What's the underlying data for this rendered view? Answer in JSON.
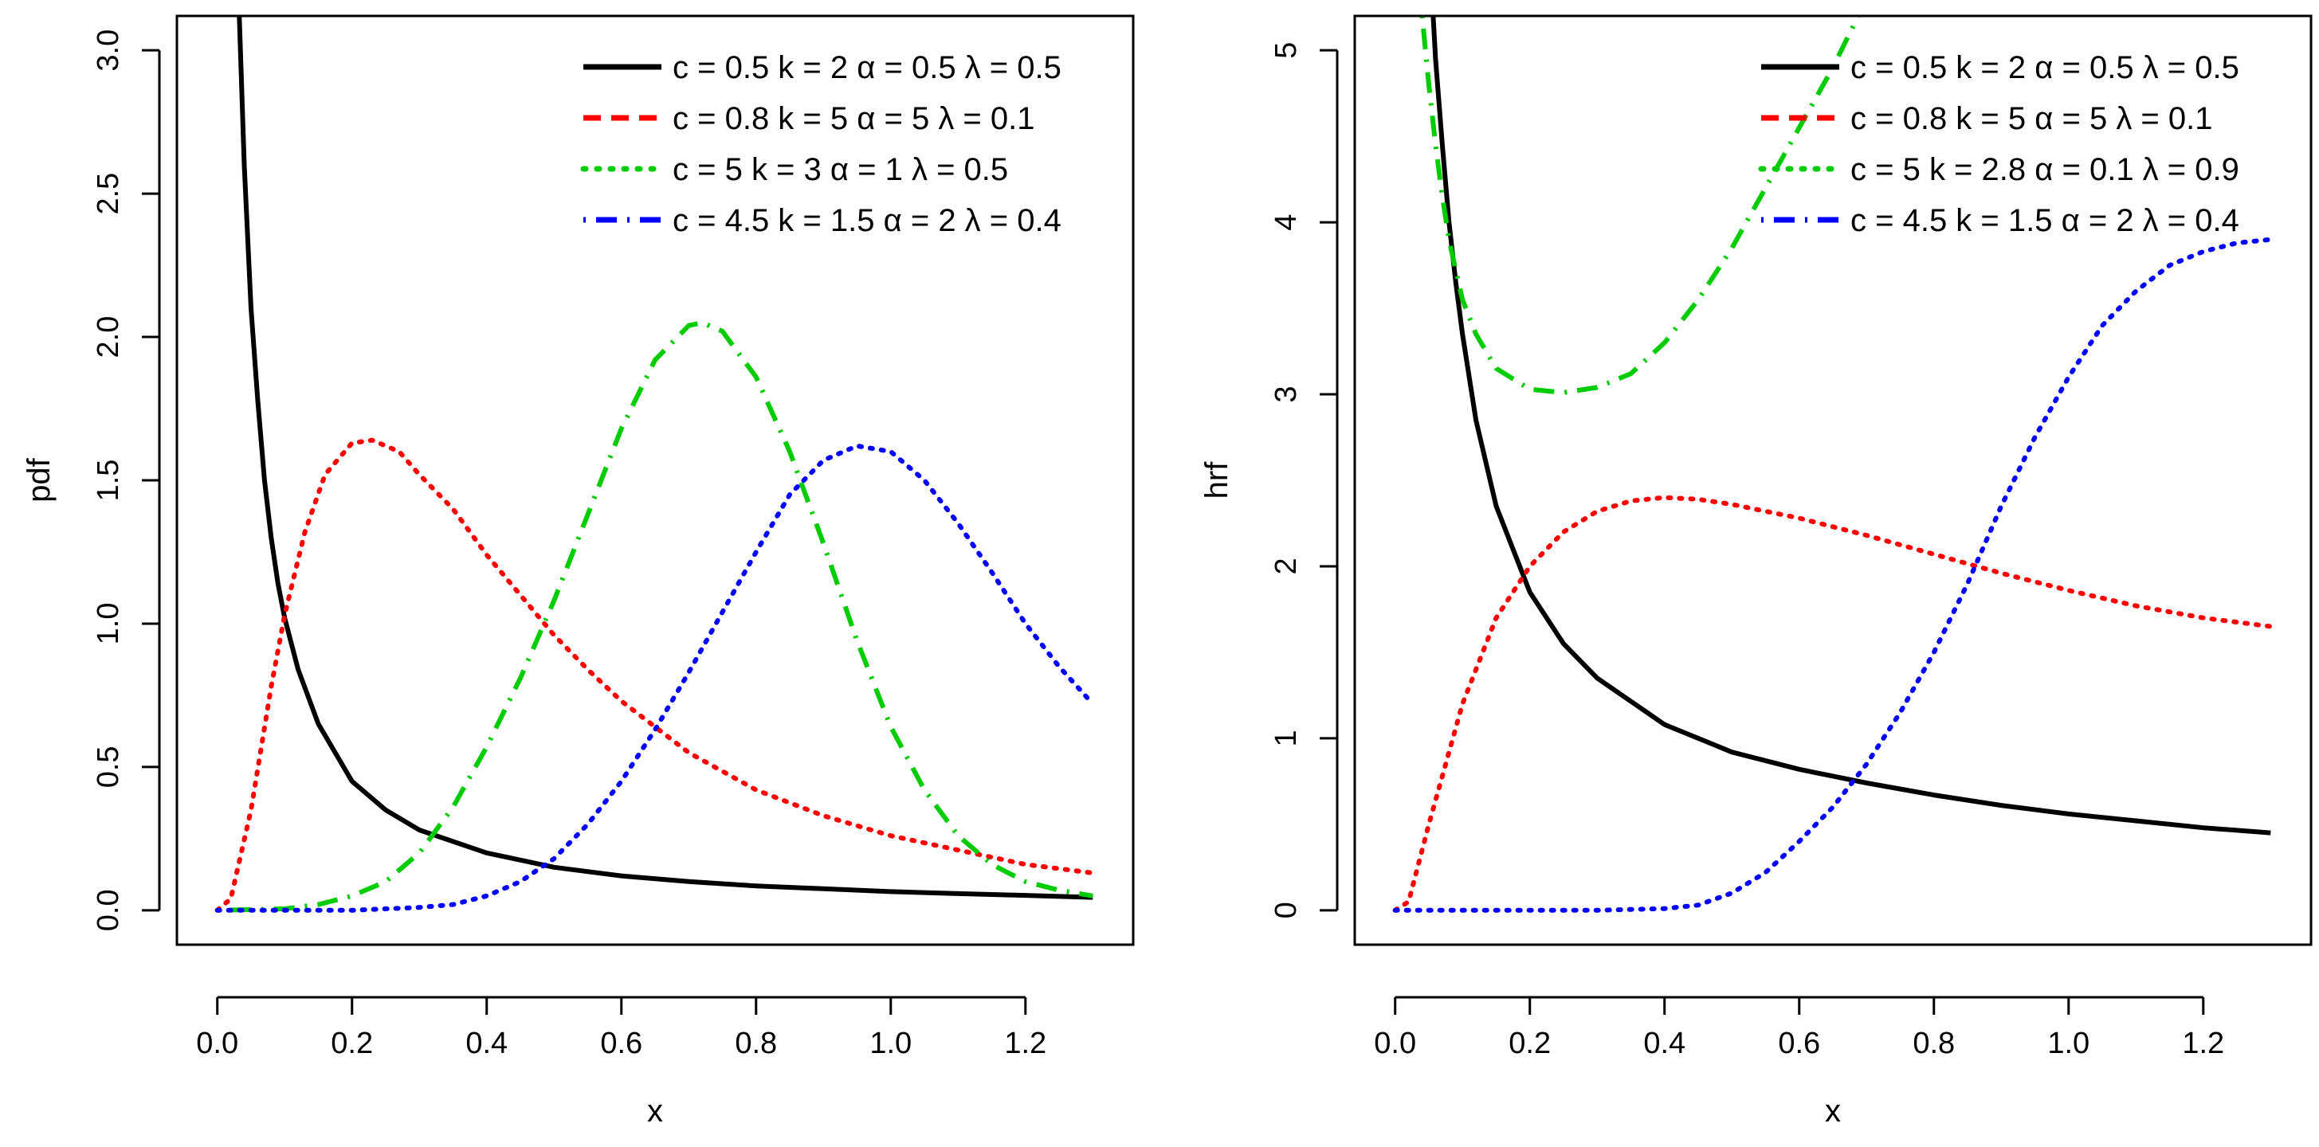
{
  "chart_data": [
    {
      "type": "line",
      "title": "",
      "xlabel": "x",
      "ylabel": "pdf",
      "xlim": [
        -0.06,
        1.36
      ],
      "ylim": [
        -0.12,
        3.12
      ],
      "xticks": [
        0.0,
        0.2,
        0.4,
        0.6,
        0.8,
        1.0,
        1.2
      ],
      "xtick_labels": [
        "0.0",
        "0.2",
        "0.4",
        "0.6",
        "0.8",
        "1.0",
        "1.2"
      ],
      "yticks": [
        0.0,
        0.5,
        1.0,
        1.5,
        2.0,
        2.5,
        3.0
      ],
      "ytick_labels": [
        "0.0",
        "0.5",
        "1.0",
        "1.5",
        "2.0",
        "2.5",
        "3.0"
      ],
      "legend_position": "top-right",
      "series": [
        {
          "name": "c = 0.5  k = 2  α = 0.5  λ = 0.5",
          "color": "#000000",
          "style": "solid",
          "legend_style": "solid",
          "x": [
            0.03,
            0.04,
            0.05,
            0.06,
            0.07,
            0.08,
            0.09,
            0.1,
            0.12,
            0.15,
            0.2,
            0.25,
            0.3,
            0.4,
            0.5,
            0.6,
            0.7,
            0.8,
            0.9,
            1.0,
            1.1,
            1.2,
            1.3
          ],
          "y": [
            3.3,
            2.6,
            2.1,
            1.78,
            1.5,
            1.3,
            1.14,
            1.02,
            0.84,
            0.65,
            0.45,
            0.35,
            0.28,
            0.2,
            0.15,
            0.12,
            0.1,
            0.085,
            0.075,
            0.065,
            0.058,
            0.052,
            0.045
          ]
        },
        {
          "name": "c = 0.8  k = 5  α = 5  λ = 0.1",
          "color": "#ff0000",
          "style": "dotted",
          "legend_style": "dashed",
          "x": [
            0.0,
            0.02,
            0.05,
            0.08,
            0.1,
            0.13,
            0.16,
            0.2,
            0.23,
            0.27,
            0.3,
            0.35,
            0.4,
            0.45,
            0.5,
            0.55,
            0.6,
            0.7,
            0.8,
            0.9,
            1.0,
            1.1,
            1.2,
            1.3
          ],
          "y": [
            0.0,
            0.04,
            0.35,
            0.78,
            1.03,
            1.32,
            1.52,
            1.63,
            1.64,
            1.6,
            1.52,
            1.4,
            1.24,
            1.1,
            0.96,
            0.84,
            0.73,
            0.55,
            0.42,
            0.33,
            0.26,
            0.21,
            0.16,
            0.13
          ]
        },
        {
          "name": "c = 5  k = 3  α = 1  λ = 0.5",
          "color": "#00cc00",
          "style": "dotdash",
          "legend_style": "dotted",
          "x": [
            0.0,
            0.1,
            0.15,
            0.2,
            0.25,
            0.3,
            0.35,
            0.4,
            0.45,
            0.5,
            0.55,
            0.6,
            0.65,
            0.7,
            0.72,
            0.75,
            0.8,
            0.85,
            0.9,
            0.95,
            1.0,
            1.05,
            1.1,
            1.15,
            1.2,
            1.25,
            1.3
          ],
          "y": [
            0.0,
            0.005,
            0.02,
            0.05,
            0.1,
            0.2,
            0.36,
            0.57,
            0.81,
            1.08,
            1.38,
            1.68,
            1.92,
            2.04,
            2.05,
            2.02,
            1.86,
            1.6,
            1.28,
            0.94,
            0.64,
            0.42,
            0.26,
            0.16,
            0.1,
            0.07,
            0.05
          ]
        },
        {
          "name": "c = 4.5  k = 1.5  α = 2  λ = 0.4",
          "color": "#0000ff",
          "style": "dotted",
          "legend_style": "dotdash",
          "x": [
            0.0,
            0.2,
            0.3,
            0.35,
            0.4,
            0.45,
            0.5,
            0.55,
            0.6,
            0.65,
            0.7,
            0.75,
            0.8,
            0.85,
            0.9,
            0.95,
            1.0,
            1.05,
            1.1,
            1.15,
            1.2,
            1.25,
            1.3
          ],
          "y": [
            0.0,
            0.0,
            0.01,
            0.02,
            0.05,
            0.1,
            0.18,
            0.3,
            0.45,
            0.63,
            0.83,
            1.04,
            1.25,
            1.45,
            1.57,
            1.62,
            1.6,
            1.5,
            1.35,
            1.18,
            1.0,
            0.85,
            0.72
          ]
        }
      ]
    },
    {
      "type": "line",
      "title": "",
      "xlabel": "x",
      "ylabel": "hrf",
      "xlim": [
        -0.06,
        1.36
      ],
      "ylim": [
        -0.2,
        5.2
      ],
      "xticks": [
        0.0,
        0.2,
        0.4,
        0.6,
        0.8,
        1.0,
        1.2
      ],
      "xtick_labels": [
        "0.0",
        "0.2",
        "0.4",
        "0.6",
        "0.8",
        "1.0",
        "1.2"
      ],
      "yticks": [
        0,
        1,
        2,
        3,
        4,
        5
      ],
      "ytick_labels": [
        "0",
        "1",
        "2",
        "3",
        "4",
        "5"
      ],
      "legend_position": "top-right",
      "series": [
        {
          "name": "c = 0.5  k = 2  α = 0.5  λ = 0.5",
          "color": "#000000",
          "style": "solid",
          "legend_style": "solid",
          "x": [
            0.055,
            0.06,
            0.07,
            0.08,
            0.09,
            0.1,
            0.12,
            0.15,
            0.2,
            0.25,
            0.3,
            0.4,
            0.5,
            0.6,
            0.7,
            0.8,
            0.9,
            1.0,
            1.1,
            1.2,
            1.3
          ],
          "y": [
            5.3,
            4.95,
            4.45,
            4.0,
            3.65,
            3.35,
            2.85,
            2.35,
            1.85,
            1.55,
            1.35,
            1.08,
            0.92,
            0.82,
            0.74,
            0.67,
            0.61,
            0.56,
            0.52,
            0.48,
            0.45
          ]
        },
        {
          "name": "c = 0.8  k = 5  α = 5  λ = 0.1",
          "color": "#ff0000",
          "style": "dotted",
          "legend_style": "dashed",
          "x": [
            0.0,
            0.02,
            0.05,
            0.1,
            0.15,
            0.2,
            0.25,
            0.3,
            0.35,
            0.4,
            0.45,
            0.5,
            0.6,
            0.7,
            0.8,
            0.9,
            1.0,
            1.1,
            1.2,
            1.3
          ],
          "y": [
            0.0,
            0.05,
            0.5,
            1.2,
            1.7,
            2.0,
            2.2,
            2.32,
            2.38,
            2.4,
            2.39,
            2.36,
            2.28,
            2.18,
            2.07,
            1.96,
            1.86,
            1.77,
            1.7,
            1.65
          ]
        },
        {
          "name": "c = 5  k = 2.8  α = 0.1  λ = 0.9",
          "color": "#00cc00",
          "style": "dotdash",
          "legend_style": "dotted",
          "x": [
            0.04,
            0.05,
            0.06,
            0.07,
            0.08,
            0.09,
            0.1,
            0.12,
            0.15,
            0.2,
            0.25,
            0.3,
            0.35,
            0.4,
            0.45,
            0.5,
            0.55,
            0.6,
            0.65,
            0.7
          ],
          "y": [
            5.2,
            4.8,
            4.45,
            4.15,
            3.9,
            3.72,
            3.55,
            3.35,
            3.15,
            3.03,
            3.01,
            3.04,
            3.12,
            3.3,
            3.55,
            3.85,
            4.2,
            4.55,
            4.9,
            5.3
          ]
        },
        {
          "name": "c = 4.5  k = 1.5  α = 2  λ = 0.4",
          "color": "#0000ff",
          "style": "dotted",
          "legend_style": "dotdash",
          "x": [
            0.0,
            0.2,
            0.3,
            0.4,
            0.45,
            0.5,
            0.55,
            0.6,
            0.65,
            0.7,
            0.75,
            0.8,
            0.85,
            0.9,
            0.95,
            1.0,
            1.05,
            1.1,
            1.15,
            1.2,
            1.25,
            1.3
          ],
          "y": [
            0.0,
            0.0,
            0.0,
            0.01,
            0.03,
            0.1,
            0.22,
            0.4,
            0.6,
            0.85,
            1.15,
            1.5,
            1.9,
            2.35,
            2.75,
            3.1,
            3.4,
            3.6,
            3.75,
            3.83,
            3.88,
            3.9
          ]
        }
      ]
    }
  ]
}
